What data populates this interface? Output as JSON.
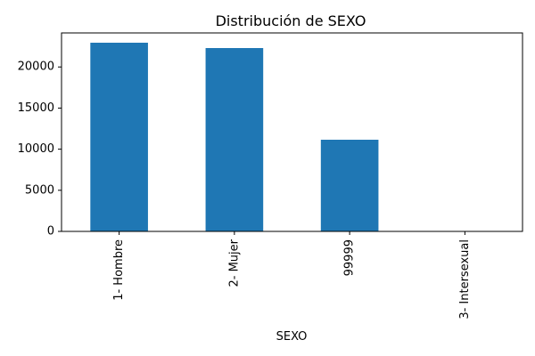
{
  "chart_data": {
    "type": "bar",
    "title": "Distribución de SEXO",
    "xlabel": "SEXO",
    "ylabel": "",
    "categories": [
      "1- Hombre",
      "2- Mujer",
      "99999",
      "3- Intersexual"
    ],
    "values": [
      22950,
      22300,
      11150,
      8
    ],
    "ylim": [
      0,
      24140
    ],
    "yticks": [
      0,
      5000,
      10000,
      15000,
      20000
    ],
    "grid": false,
    "legend": "none",
    "bar_color": "#1f77b4"
  }
}
